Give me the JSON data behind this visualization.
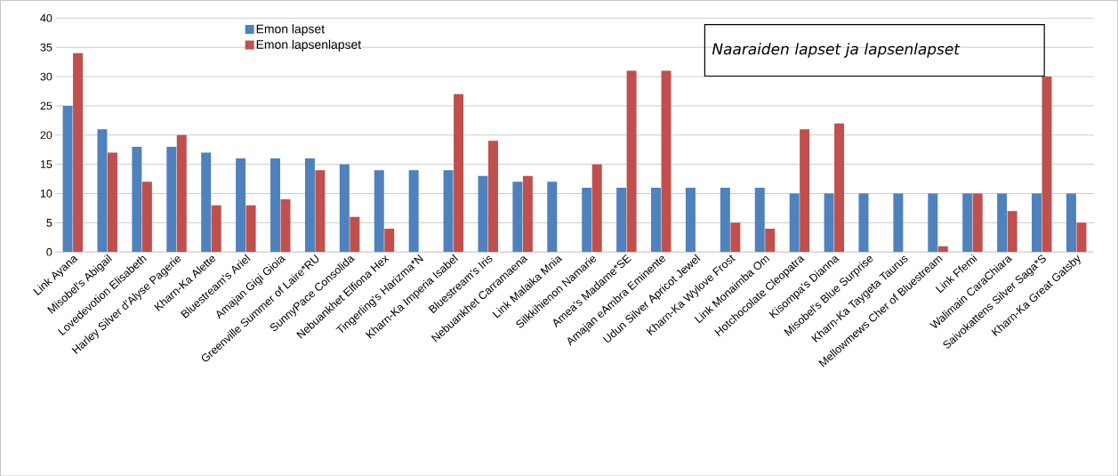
{
  "chart_data": {
    "type": "bar",
    "title": "Naaraiden lapset ja lapsenlapset",
    "categories": [
      "Link Ayana",
      "Misobel's Abigail",
      "Lovedevotion Elisabeth",
      "Harley Silver d'Alyse Pagerie",
      "Kharn-Ka Alette",
      "Bluestream's Ariel",
      "Amajan Gigi Gioia",
      "Greenville Summer of Laire*RU",
      "SunnyPace Consolida",
      "Nebuankhet Elfiona Hex",
      "Tingerling's Harizma*N",
      "Kharn-Ka Imperia Isabel",
      "Bluestream's Iris",
      "Nebuankhet Carramaena",
      "Link Malaika Mnia",
      "Silkkihienon Namarie",
      "Amea's Madame*SE",
      "Amajan eAmbra Eminente",
      "Udun Silver Apricot Jewel",
      "Kharn-Ka Wylove Frost",
      "Link  Monaimba Om",
      "Hotchocolate Cleopatra",
      "Kisompa's Dianna",
      "Misobel's Blue Surprise",
      "Kharn-Ka Taygeta Taurus",
      "Mellowmews Cher of Bluestream",
      "Link Ffemi",
      "Walimain CaraChiara",
      "Saivokattens Silver Saga*S",
      "Kharn-Ka Great Gatsby"
    ],
    "series": [
      {
        "name": "Emon lapset",
        "color": "#4f81bd",
        "values": [
          25,
          21,
          18,
          18,
          17,
          16,
          16,
          16,
          15,
          14,
          14,
          14,
          13,
          12,
          12,
          11,
          11,
          11,
          11,
          11,
          11,
          10,
          10,
          10,
          10,
          10,
          10,
          10,
          10,
          10
        ]
      },
      {
        "name": "Emon lapsenlapset",
        "color": "#c0504d",
        "values": [
          34,
          17,
          12,
          20,
          8,
          8,
          9,
          14,
          6,
          4,
          null,
          27,
          19,
          13,
          null,
          15,
          31,
          31,
          null,
          5,
          4,
          21,
          22,
          null,
          null,
          1,
          10,
          7,
          30,
          5
        ]
      }
    ],
    "ylim": [
      0,
      40
    ],
    "yticks": [
      0,
      5,
      10,
      15,
      20,
      25,
      30,
      35,
      40
    ],
    "grid": "y",
    "legend": "top"
  }
}
